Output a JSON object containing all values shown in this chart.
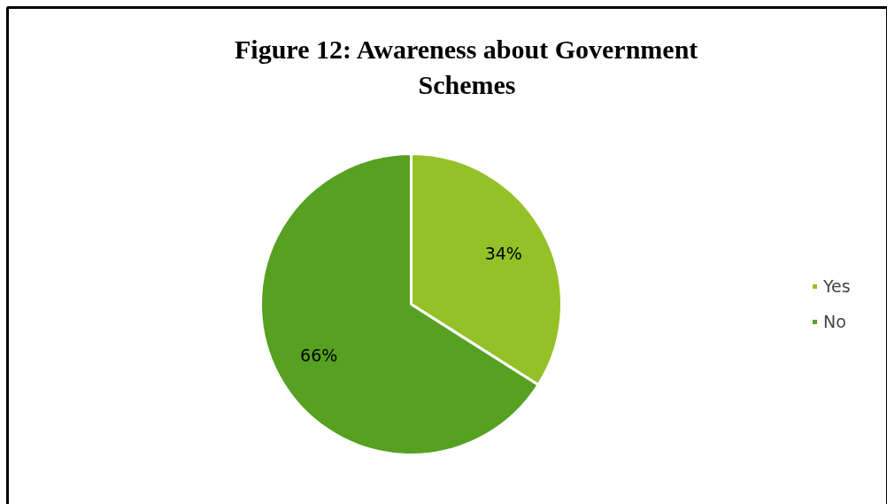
{
  "chart_data": {
    "type": "pie",
    "title": "Figure 12: Awareness about Government Schemes",
    "categories": [
      "Yes",
      "No"
    ],
    "values": [
      34,
      66
    ],
    "colors": [
      "#93c127",
      "#56a022"
    ],
    "value_labels": [
      "34%",
      "66%"
    ],
    "legend": "right"
  }
}
